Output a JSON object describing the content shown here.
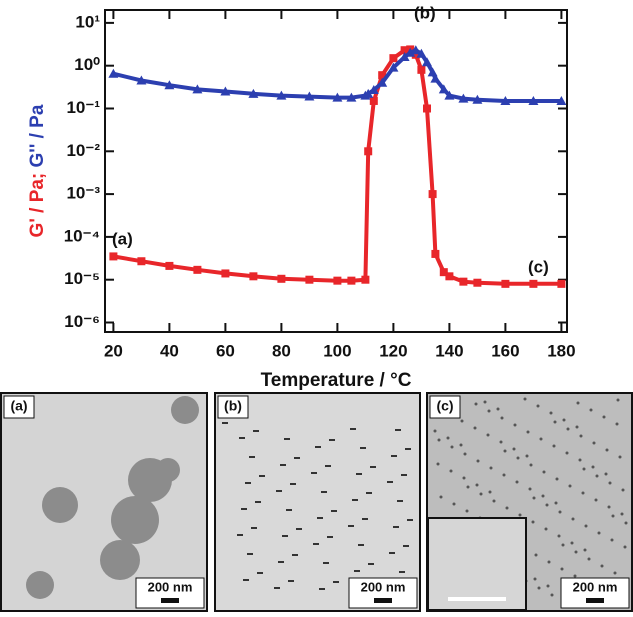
{
  "chart_data": {
    "type": "scatter-line",
    "ylabel": [
      "G' / Pa;",
      "G'' / Pa"
    ],
    "xlabel": "Temperature / °C",
    "log_y": true,
    "x": [
      20,
      30,
      40,
      50,
      60,
      70,
      80,
      90,
      100,
      105,
      110,
      111,
      113,
      116,
      120,
      124,
      126,
      128,
      130,
      132,
      134,
      135,
      138,
      140,
      145,
      150,
      160,
      170,
      180
    ],
    "series": [
      {
        "name": "G'",
        "color": "#e8262a",
        "values": [
          3.5e-05,
          2.7e-05,
          2.1e-05,
          1.7e-05,
          1.4e-05,
          1.2e-05,
          1.05e-05,
          1e-05,
          9.5e-06,
          9.5e-06,
          1e-05,
          0.01,
          0.15,
          0.6,
          1.5,
          2.3,
          2.4,
          1.8,
          0.8,
          0.1,
          0.001,
          4e-05,
          1.5e-05,
          1.2e-05,
          9e-06,
          8.5e-06,
          8e-06,
          8e-06,
          8e-06
        ]
      },
      {
        "name": "G''",
        "color": "#2c3fb0",
        "values": [
          0.65,
          0.45,
          0.35,
          0.28,
          0.25,
          0.22,
          0.2,
          0.19,
          0.18,
          0.18,
          0.2,
          0.22,
          0.27,
          0.4,
          0.9,
          1.6,
          2.0,
          2.3,
          1.9,
          1.2,
          0.7,
          0.5,
          0.28,
          0.2,
          0.17,
          0.16,
          0.15,
          0.15,
          0.15
        ]
      }
    ],
    "xlim": [
      17,
      182
    ],
    "xticks": [
      20,
      40,
      60,
      80,
      100,
      120,
      140,
      160,
      180
    ],
    "ylim": [
      6e-07,
      20
    ],
    "yticks": [
      {
        "value": 10,
        "label": "10¹"
      },
      {
        "value": 1,
        "label": "10⁰"
      },
      {
        "value": 0.1,
        "label": "10⁻¹"
      },
      {
        "value": 0.01,
        "label": "10⁻²"
      },
      {
        "value": 0.001,
        "label": "10⁻³"
      },
      {
        "value": 0.0001,
        "label": "10⁻⁴"
      },
      {
        "value": 1e-05,
        "label": "10⁻⁵"
      },
      {
        "value": 1e-06,
        "label": "10⁻⁶"
      }
    ],
    "annotations": [
      "(a)",
      "(b)",
      "(c)"
    ]
  },
  "panels": [
    {
      "label": "(a)",
      "scale": "200 nm"
    },
    {
      "label": "(b)",
      "scale": "200 nm"
    },
    {
      "label": "(c)",
      "scale": "200 nm"
    }
  ]
}
